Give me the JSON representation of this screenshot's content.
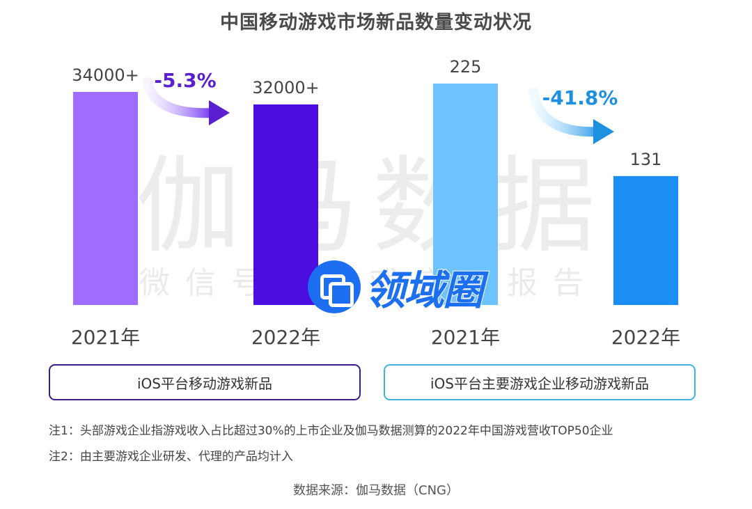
{
  "title": "中国移动游戏市场新品数量变动状况",
  "watermark": {
    "main": "伽马数据",
    "sub": "微信号：游戏产业报告",
    "logo_text": "领域圈"
  },
  "chart_data": [
    {
      "type": "bar",
      "name": "iOS平台移动游戏新品",
      "categories": [
        "2021年",
        "2022年"
      ],
      "values": [
        34000,
        32000
      ],
      "value_labels": [
        "34000+",
        "32000+"
      ],
      "change_label": "-5.3%",
      "colors": [
        "#9e6cff",
        "#4a0fe0"
      ],
      "change_color": "#5a1fcf"
    },
    {
      "type": "bar",
      "name": "iOS平台主要游戏企业移动游戏新品",
      "categories": [
        "2021年",
        "2022年"
      ],
      "values": [
        225,
        131
      ],
      "value_labels": [
        "225",
        "131"
      ],
      "change_label": "-41.8%",
      "colors": [
        "#6cc3ff",
        "#1a8ef2"
      ],
      "change_color": "#1e90e0"
    }
  ],
  "legend": {
    "left": "iOS平台移动游戏新品",
    "right": "iOS平台主要游戏企业移动游戏新品"
  },
  "notes": [
    "注1：头部游戏企业指游戏收入占比超过30%的上市企业及伽马数据测算的2022年中国游戏营收TOP50企业",
    "注2：由主要游戏企业研发、代理的产品均计入"
  ],
  "source": "数据来源：伽马数据（CNG）"
}
